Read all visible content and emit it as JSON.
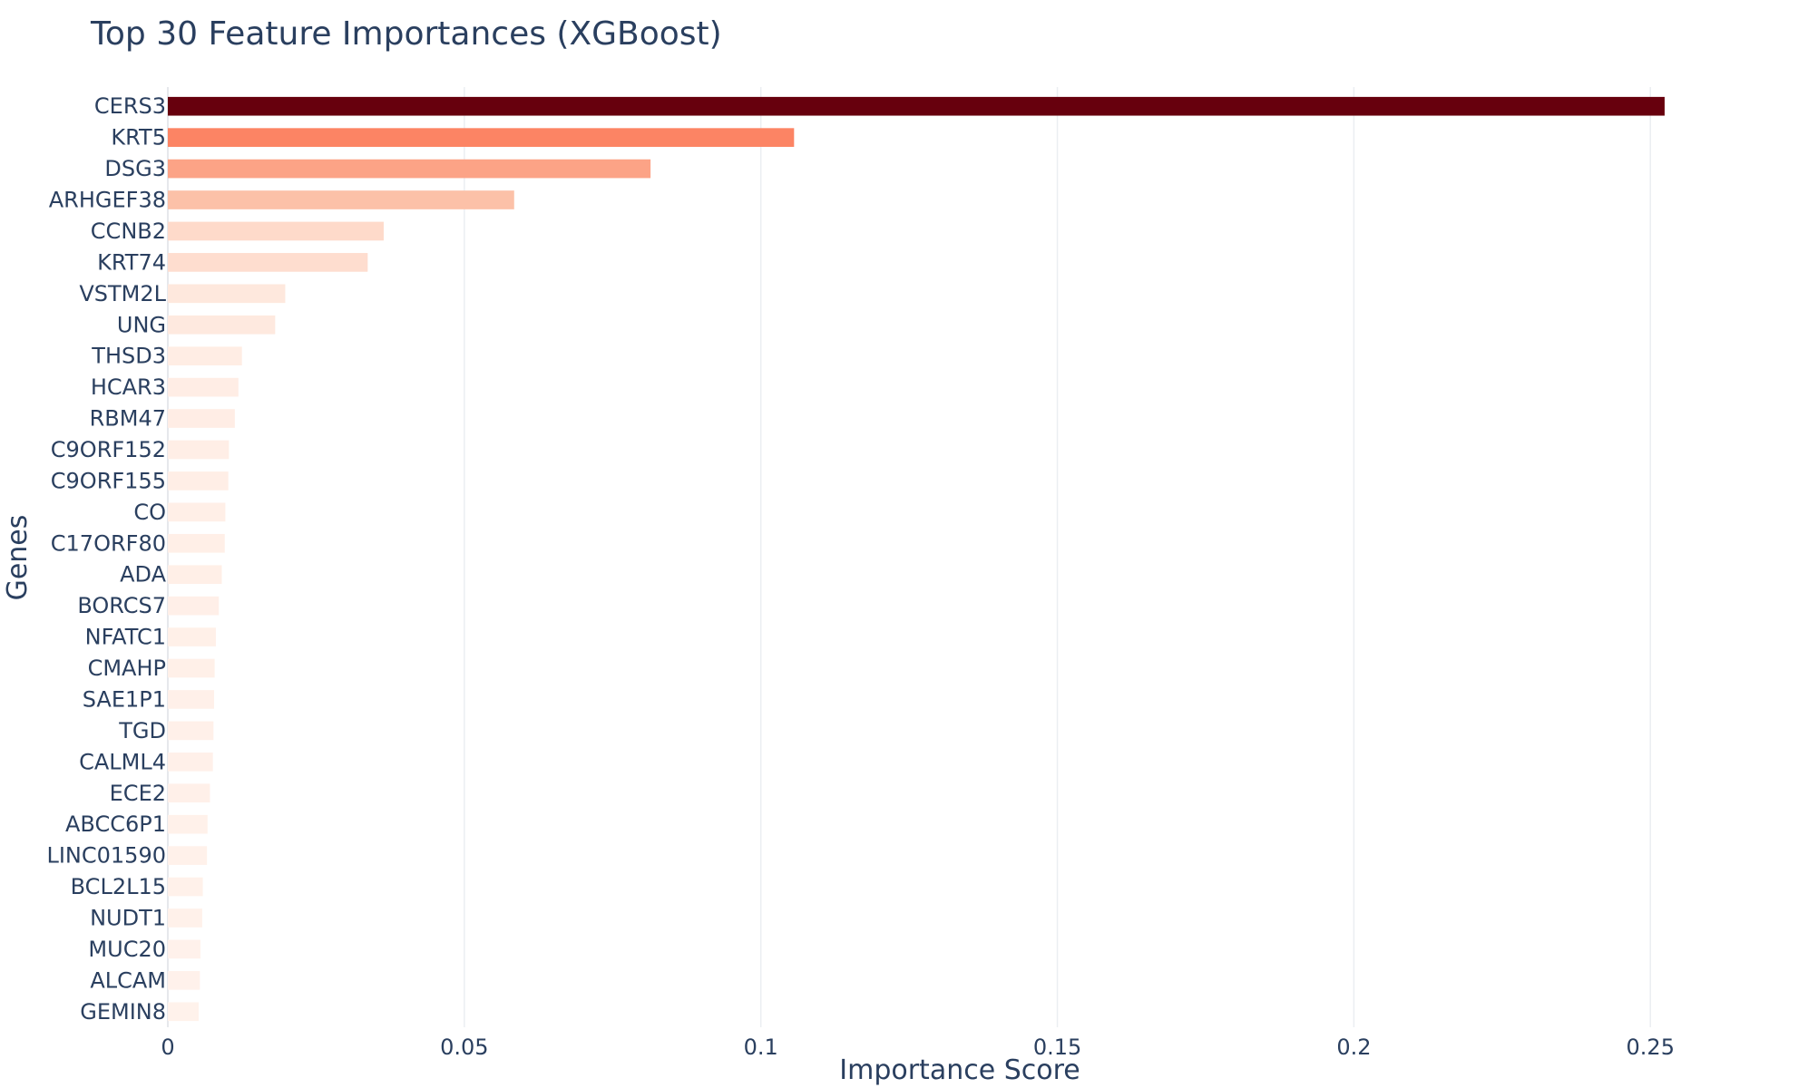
{
  "chart_data": {
    "type": "bar",
    "orientation": "horizontal",
    "title": "Top 30 Feature Importances (XGBoost)",
    "xlabel": "Importance Score",
    "ylabel": "Genes",
    "xlim": [
      0,
      0.27
    ],
    "xticks": [
      0,
      0.05,
      0.1,
      0.15,
      0.2,
      0.25
    ],
    "xtick_labels": [
      "0",
      "0.05",
      "0.1",
      "0.15",
      "0.2",
      "0.25"
    ],
    "grid": true,
    "colorscale": "Reds",
    "categories": [
      "CERS3",
      "KRT5",
      "DSG3",
      "ARHGEF38",
      "CCNB2",
      "KRT74",
      "VSTM2L",
      "UNG",
      "THSD3",
      "HCAR3",
      "RBM47",
      "C9ORF152",
      "C9ORF155",
      "CO",
      "C17ORF80",
      "ADA",
      "BORCS7",
      "NFATC1",
      "CMAHP",
      "SAE1P1",
      "TGD",
      "CALML4",
      "ECE2",
      "ABCC6P1",
      "LINC01590",
      "BCL2L15",
      "NUDT1",
      "MUC20",
      "ALCAM",
      "GEMIN8"
    ],
    "values": [
      0.2524,
      0.1056,
      0.0814,
      0.0584,
      0.0364,
      0.0337,
      0.0198,
      0.0181,
      0.0125,
      0.0119,
      0.0113,
      0.0103,
      0.0102,
      0.0097,
      0.0096,
      0.0091,
      0.0086,
      0.0081,
      0.0079,
      0.0078,
      0.0077,
      0.0076,
      0.0071,
      0.0067,
      0.0066,
      0.0059,
      0.0058,
      0.0055,
      0.0054,
      0.0052
    ]
  }
}
